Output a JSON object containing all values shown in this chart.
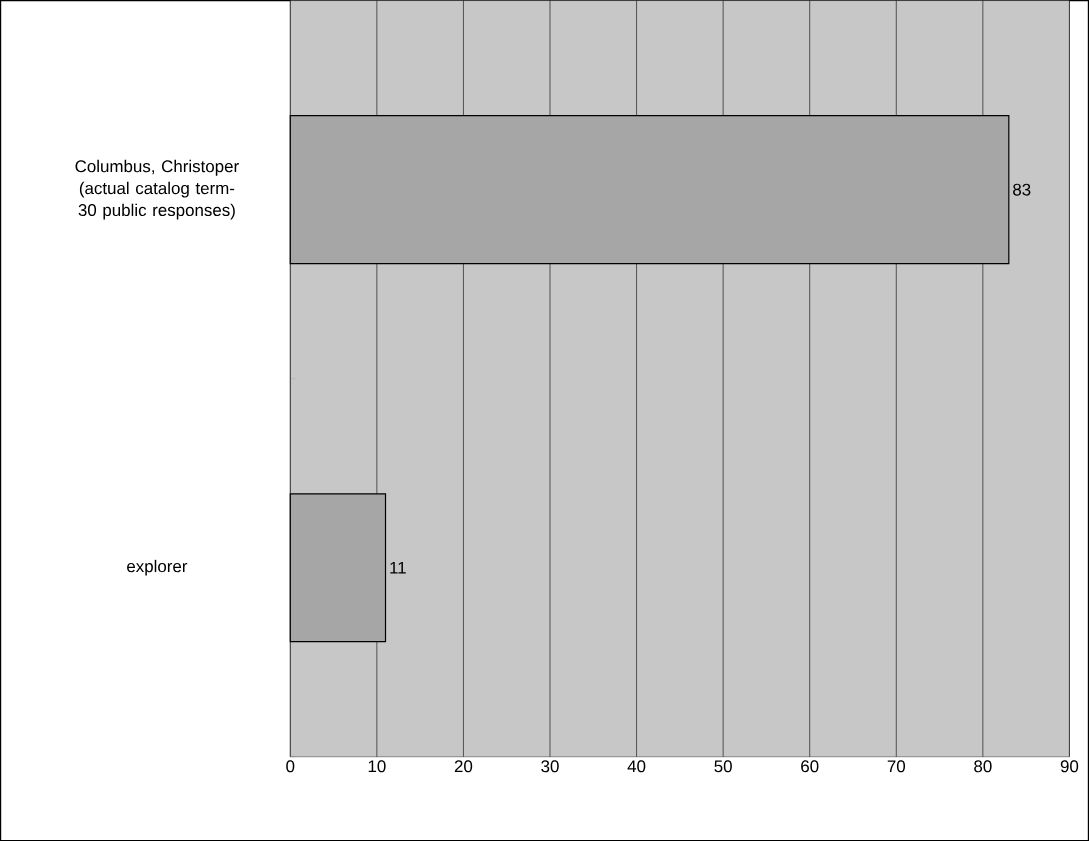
{
  "chart_data": {
    "type": "bar",
    "orientation": "horizontal",
    "categories": [
      "Columbus, Christoper (actual catalog term- 30 public responses)",
      "explorer"
    ],
    "values": [
      83,
      11
    ],
    "color": "#a6a6a6",
    "xlim": [
      0,
      90
    ],
    "xticks": [
      0,
      10,
      20,
      30,
      40,
      50,
      60,
      70,
      80,
      90
    ],
    "grid": "x",
    "data_labels": true
  }
}
